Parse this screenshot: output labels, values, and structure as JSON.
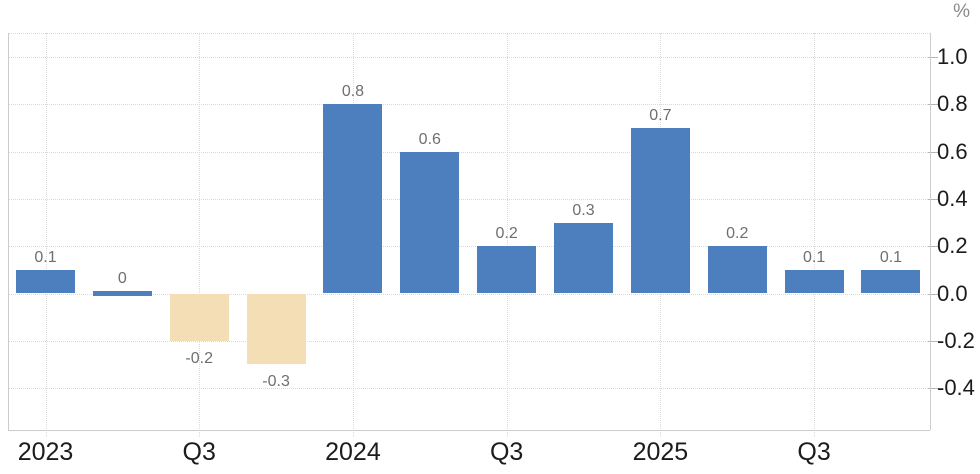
{
  "chart_data": {
    "type": "bar",
    "title": "",
    "categories": [
      "2023 Q1",
      "2023 Q2",
      "2023 Q3",
      "2023 Q4",
      "2024 Q1",
      "2024 Q2",
      "2024 Q3",
      "2024 Q4",
      "2025 Q1",
      "2025 Q2",
      "2025 Q3",
      "2025 Q4"
    ],
    "values": [
      0.1,
      0,
      -0.2,
      -0.3,
      0.8,
      0.6,
      0.2,
      0.3,
      0.7,
      0.2,
      0.1,
      0.1
    ],
    "value_labels": [
      "0.1",
      "0",
      "-0.2",
      "-0.3",
      "0.8",
      "0.6",
      "0.2",
      "0.3",
      "0.7",
      "0.2",
      "0.1",
      "0.1"
    ],
    "x_axis": {
      "ticks": [
        {
          "index": 0,
          "label": "2023"
        },
        {
          "index": 2,
          "label": "Q3"
        },
        {
          "index": 4,
          "label": "2024"
        },
        {
          "index": 6,
          "label": "Q3"
        },
        {
          "index": 8,
          "label": "2025"
        },
        {
          "index": 10,
          "label": "Q3"
        }
      ]
    },
    "y_axis": {
      "tick_values": [
        1.0,
        0.8,
        0.6,
        0.4,
        0.2,
        0.0,
        -0.2,
        -0.4
      ],
      "tick_labels": [
        "1.0",
        "0.8",
        "0.6",
        "0.4",
        "0.2",
        "0.0",
        "-0.2",
        "-0.4"
      ],
      "unit_label": "%",
      "range": [
        -0.58,
        1.1
      ],
      "position": "right"
    },
    "colors": {
      "positive_bar": "#4d7ebd",
      "negative_bar": "#f3deb5",
      "grid": "#d9d9d9",
      "axis": "#cccccc",
      "value_label_text": "#6f6f6f",
      "tick_label_text": "#1c1c1c"
    },
    "grid": true,
    "legend": "none"
  }
}
